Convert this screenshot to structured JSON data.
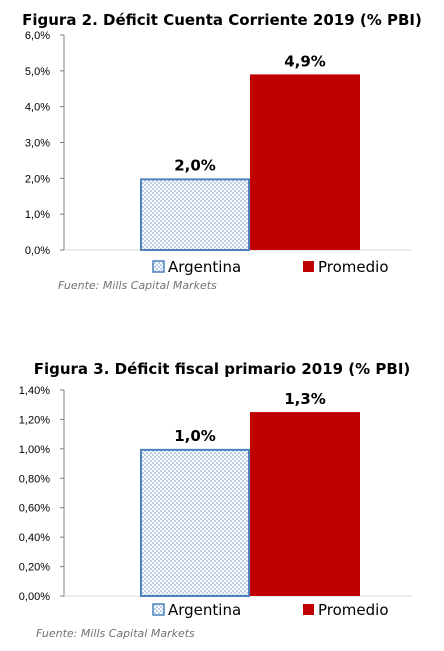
{
  "colors": {
    "argentina_fill": "#b8cce4",
    "argentina_border": "#4f81bd",
    "promedio_fill": "#c00000",
    "axis": "#7f7f7f",
    "source_text": "#767171"
  },
  "chart_data": [
    {
      "type": "bar",
      "title": "Figura 2. Déficit Cuenta Corriente 2019 (% PBI)",
      "categories": [
        "Argentina",
        "Promedio"
      ],
      "values": [
        2.0,
        4.9
      ],
      "data_labels": [
        "2,0%",
        "4,9%"
      ],
      "ylim": [
        0,
        6
      ],
      "yticks": [
        0,
        1,
        2,
        3,
        4,
        5,
        6
      ],
      "ytick_labels": [
        "0,0%",
        "1,0%",
        "2,0%",
        "3,0%",
        "4,0%",
        "5,0%",
        "6,0%"
      ],
      "legend": [
        "Argentina",
        "Promedio"
      ],
      "legend_position": "bottom",
      "grid": false,
      "source": "Fuente: Mills Capital Markets"
    },
    {
      "type": "bar",
      "title": "Figura 3. Déficit fiscal primario 2019 (% PBI)",
      "categories": [
        "Argentina",
        "Promedio"
      ],
      "values": [
        1.0,
        1.25
      ],
      "data_labels": [
        "1,0%",
        "1,3%"
      ],
      "ylim": [
        0,
        1.4
      ],
      "yticks": [
        0,
        0.2,
        0.4,
        0.6,
        0.8,
        1.0,
        1.2,
        1.4
      ],
      "ytick_labels": [
        "0,00%",
        "0,20%",
        "0,40%",
        "0,60%",
        "0,80%",
        "1,00%",
        "1,20%",
        "1,40%"
      ],
      "legend": [
        "Argentina",
        "Promedio"
      ],
      "legend_position": "bottom",
      "grid": false,
      "source": "Fuente: Mills Capital Markets"
    }
  ]
}
